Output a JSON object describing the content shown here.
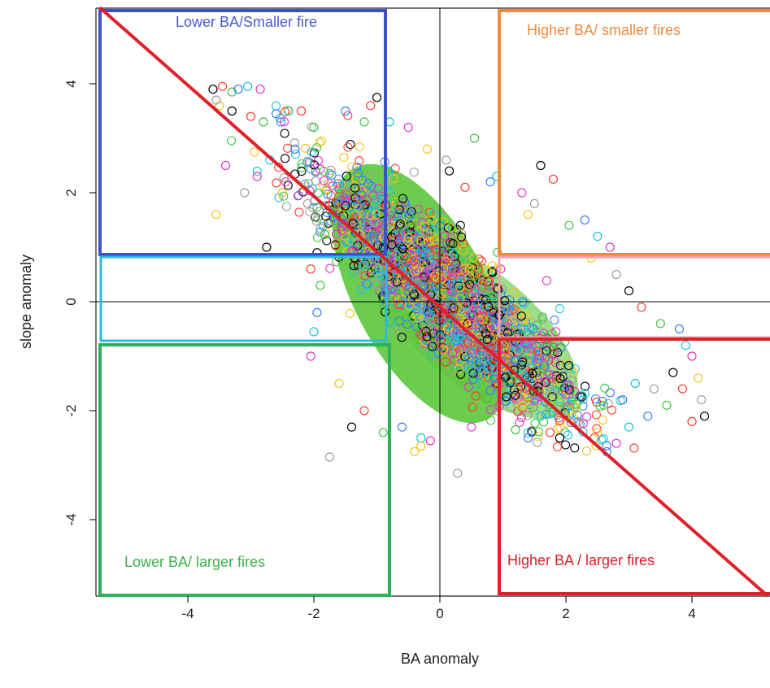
{
  "chart_data": {
    "type": "scatter",
    "title": "",
    "xlabel": "BA anomaly",
    "ylabel": "slope anomaly",
    "xlim": [
      -5.4,
      5.2
    ],
    "ylim": [
      -5.4,
      5.4
    ],
    "x_ticks": [
      -4,
      -2,
      0,
      2,
      4
    ],
    "y_ticks": [
      -4,
      -2,
      0,
      2,
      4
    ],
    "grid": false,
    "legend": "none",
    "reference_lines": {
      "x": 0,
      "y": 0,
      "color": "#000000"
    },
    "trend_line": {
      "from": [
        -5.4,
        5.4
      ],
      "to": [
        5.2,
        -5.4
      ],
      "color": "#e0202a"
    },
    "point_colors": [
      "#000000",
      "#ff3b30",
      "#3ec63e",
      "#3a7bff",
      "#19c4d8",
      "#e633c8",
      "#f5c518",
      "#9e9e9e"
    ],
    "dense_core_color": "#5cc63a",
    "points": [
      [
        -3.6,
        3.9
      ],
      [
        -3.45,
        3.95
      ],
      [
        -3.3,
        3.85
      ],
      [
        -3.2,
        3.9
      ],
      [
        -3.05,
        3.95
      ],
      [
        -2.85,
        3.9
      ],
      [
        -3.5,
        3.6
      ],
      [
        -3.55,
        3.7
      ],
      [
        -3.3,
        3.5
      ],
      [
        -3.0,
        3.4
      ],
      [
        -2.8,
        3.3
      ],
      [
        -2.6,
        3.45
      ],
      [
        -2.4,
        3.5
      ],
      [
        -3.4,
        2.5
      ],
      [
        -3.55,
        1.6
      ],
      [
        -3.1,
        2.0
      ],
      [
        -2.75,
        1.0
      ],
      [
        -2.2,
        3.5
      ],
      [
        -2.0,
        3.2
      ],
      [
        -2.3,
        2.8
      ],
      [
        -2.7,
        2.6
      ],
      [
        -2.9,
        2.3
      ],
      [
        -2.5,
        2.0
      ],
      [
        -2.1,
        1.8
      ],
      [
        -1.95,
        0.9
      ],
      [
        -2.05,
        0.6
      ],
      [
        -1.9,
        0.3
      ],
      [
        -1.95,
        -0.2
      ],
      [
        -2.0,
        -0.55
      ],
      [
        -2.05,
        -1.0
      ],
      [
        -1.6,
        -1.5
      ],
      [
        -1.75,
        -2.85
      ],
      [
        -1.4,
        -2.3
      ],
      [
        -1.2,
        -2.0
      ],
      [
        -0.9,
        -2.4
      ],
      [
        -0.6,
        -2.3
      ],
      [
        -0.3,
        -2.5
      ],
      [
        -0.15,
        -2.55
      ],
      [
        -0.4,
        -2.75
      ],
      [
        0.28,
        -3.15
      ],
      [
        -1.0,
        3.75
      ],
      [
        -1.1,
        3.6
      ],
      [
        -1.2,
        3.3
      ],
      [
        -1.5,
        3.5
      ],
      [
        -0.8,
        3.3
      ],
      [
        -0.5,
        3.2
      ],
      [
        -0.2,
        2.8
      ],
      [
        0.1,
        2.6
      ],
      [
        0.15,
        2.4
      ],
      [
        0.4,
        2.1
      ],
      [
        0.55,
        3.0
      ],
      [
        0.8,
        2.2
      ],
      [
        0.9,
        2.3
      ],
      [
        1.3,
        2.0
      ],
      [
        1.4,
        1.6
      ],
      [
        1.5,
        1.8
      ],
      [
        1.6,
        2.5
      ],
      [
        1.8,
        2.25
      ],
      [
        2.05,
        1.4
      ],
      [
        2.3,
        1.5
      ],
      [
        2.5,
        1.2
      ],
      [
        2.7,
        1.0
      ],
      [
        2.4,
        0.8
      ],
      [
        2.8,
        0.5
      ],
      [
        3.0,
        0.2
      ],
      [
        3.2,
        -0.1
      ],
      [
        3.5,
        -0.4
      ],
      [
        3.8,
        -0.5
      ],
      [
        3.9,
        -0.8
      ],
      [
        4.0,
        -1.0
      ],
      [
        4.1,
        -1.4
      ],
      [
        4.15,
        -1.8
      ],
      [
        4.2,
        -2.1
      ],
      [
        4.0,
        -2.2
      ],
      [
        3.6,
        -1.9
      ],
      [
        3.3,
        -2.1
      ],
      [
        3.0,
        -2.3
      ],
      [
        2.8,
        -2.6
      ],
      [
        2.5,
        -2.4
      ],
      [
        2.2,
        -2.2
      ],
      [
        1.9,
        -2.5
      ],
      [
        1.75,
        -2.4
      ],
      [
        1.2,
        -2.35
      ],
      [
        1.4,
        -2.5
      ],
      [
        1.6,
        -2.1
      ],
      [
        0.5,
        -2.3
      ],
      [
        -0.3,
        -2.65
      ],
      [
        3.4,
        -1.6
      ],
      [
        3.7,
        -1.3
      ],
      [
        3.85,
        -1.6
      ],
      [
        2.6,
        -1.9
      ],
      [
        2.9,
        -1.8
      ],
      [
        3.1,
        -1.5
      ],
      [
        2.0,
        -1.7
      ],
      [
        1.3,
        -1.9
      ],
      [
        0.9,
        -2.0
      ]
    ]
  }
}
